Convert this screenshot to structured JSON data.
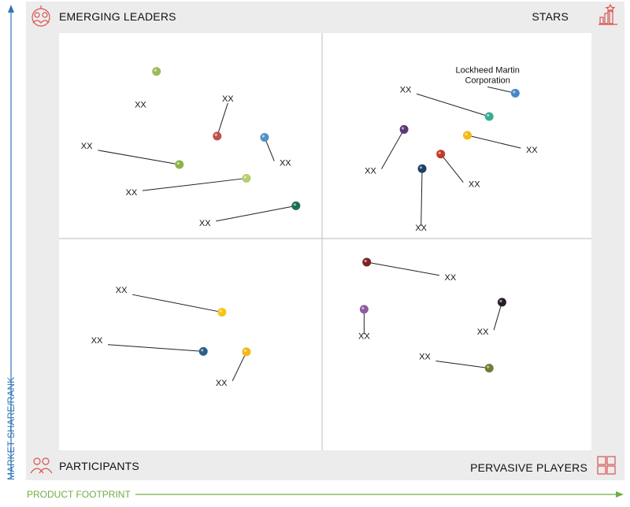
{
  "chart_data": {
    "type": "scatter",
    "quadrants": {
      "top_left": "EMERGING LEADERS",
      "top_right": "STARS",
      "bottom_left": "PARTICIPANTS",
      "bottom_right": "PERVASIVE PLAYERS"
    },
    "xlabel": "PRODUCT FOOTPRINT",
    "ylabel": "MARKET SHARE/RANK",
    "xlim": [
      0,
      100
    ],
    "ylim": [
      0,
      100
    ],
    "grid": false,
    "points": [
      {
        "label": "XX",
        "x": 18.3,
        "y": 90.8,
        "color": "#9bbb59",
        "lx": 15.3,
        "ly": 82.2,
        "leader": false
      },
      {
        "label": "XX",
        "x": 29.7,
        "y": 75.3,
        "color": "#c0504d",
        "lx": 31.7,
        "ly": 83.6,
        "leader": true
      },
      {
        "label": "XX",
        "x": 38.6,
        "y": 75.0,
        "color": "#4f92c8",
        "lx": 42.5,
        "ly": 68.2,
        "leader": true
      },
      {
        "label": "XX",
        "x": 22.6,
        "y": 68.5,
        "color": "#8ab548",
        "lx": 5.2,
        "ly": 72.3,
        "leader": true
      },
      {
        "label": "XX",
        "x": 35.2,
        "y": 65.2,
        "color": "#b5cf6f",
        "lx": 13.6,
        "ly": 61.1,
        "leader": true
      },
      {
        "label": "XX",
        "x": 44.5,
        "y": 58.6,
        "color": "#1e6e4e",
        "lx": 27.4,
        "ly": 53.8,
        "leader": true
      },
      {
        "label": "Lockheed Martin Corporation",
        "x": 85.7,
        "y": 85.6,
        "color": "#4a86c5",
        "lx": 80.5,
        "ly": 90.5,
        "leader": true
      },
      {
        "label": "XX",
        "x": 80.8,
        "y": 80.0,
        "color": "#3aab92",
        "lx": 65.1,
        "ly": 85.8,
        "leader": true
      },
      {
        "label": "XX",
        "x": 64.8,
        "y": 76.9,
        "color": "#5b3a78",
        "lx": 58.5,
        "ly": 66.3,
        "leader": true
      },
      {
        "label": "XX",
        "x": 76.7,
        "y": 75.5,
        "color": "#f5b915",
        "lx": 88.8,
        "ly": 71.3,
        "leader": true
      },
      {
        "label": "XX",
        "x": 71.7,
        "y": 71.0,
        "color": "#c0392b",
        "lx": 78.0,
        "ly": 63.1,
        "leader": true
      },
      {
        "label": "XX",
        "x": 68.2,
        "y": 67.5,
        "color": "#1f3f63",
        "lx": 68.0,
        "ly": 52.6,
        "leader": true
      },
      {
        "label": "XX",
        "x": 57.8,
        "y": 45.1,
        "color": "#7a2424",
        "lx": 73.5,
        "ly": 40.8,
        "leader": true
      },
      {
        "label": "XX",
        "x": 83.2,
        "y": 35.5,
        "color": "#2b1b2e",
        "lx": 79.6,
        "ly": 27.7,
        "leader": true
      },
      {
        "label": "XX",
        "x": 57.3,
        "y": 33.8,
        "color": "#8e5c9e",
        "lx": 57.3,
        "ly": 26.7,
        "leader": true
      },
      {
        "label": "XX",
        "x": 80.8,
        "y": 19.7,
        "color": "#6b7e34",
        "lx": 68.7,
        "ly": 21.8,
        "leader": true
      },
      {
        "label": "XX",
        "x": 30.6,
        "y": 33.1,
        "color": "#f5c518",
        "lx": 11.7,
        "ly": 37.7,
        "leader": true
      },
      {
        "label": "XX",
        "x": 27.1,
        "y": 23.7,
        "color": "#2c5f8a",
        "lx": 7.1,
        "ly": 25.7,
        "leader": true
      },
      {
        "label": "XX",
        "x": 35.2,
        "y": 23.6,
        "color": "#f2b81c",
        "lx": 30.5,
        "ly": 15.5,
        "leader": true
      }
    ]
  }
}
